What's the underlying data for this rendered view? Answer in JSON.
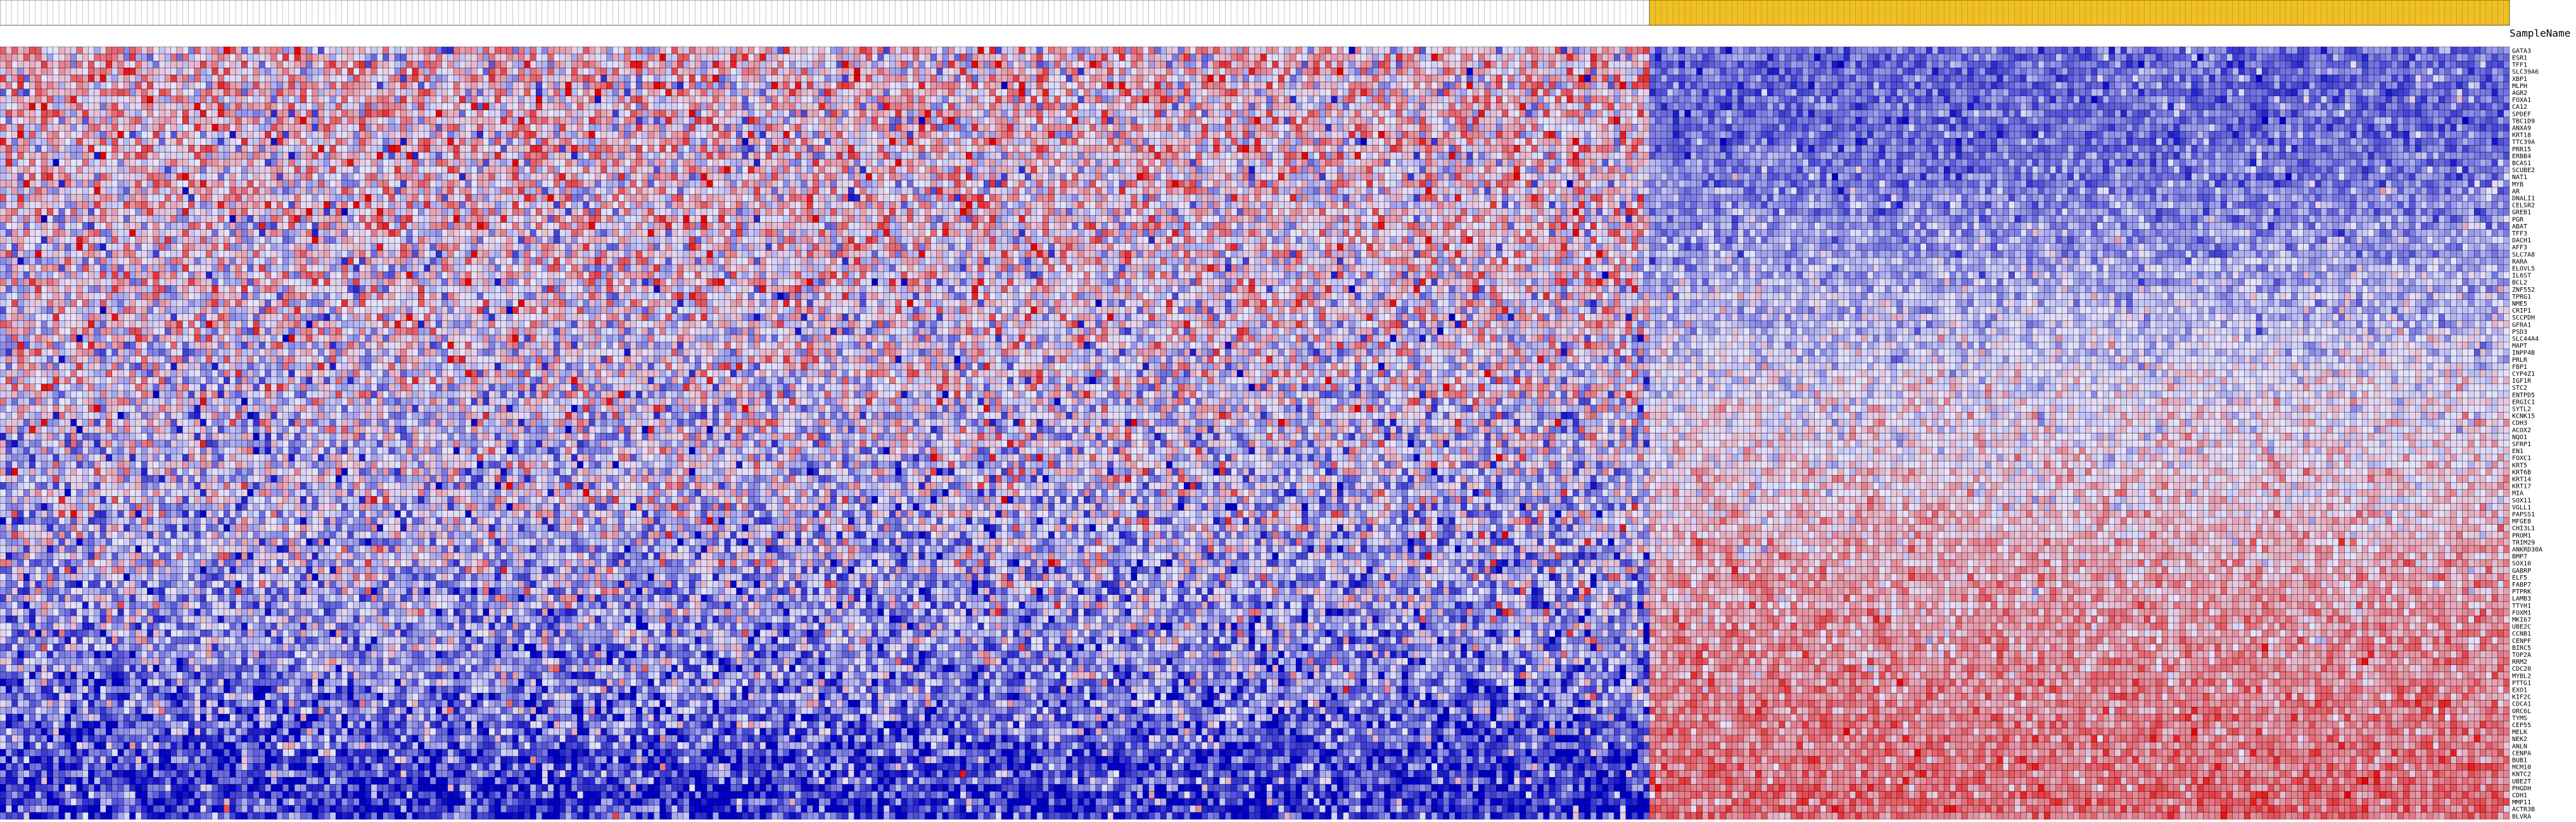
{
  "header": {
    "row_header_label": "SampleName"
  },
  "colors": {
    "low": "#0000c8",
    "mid": "#e6e6ff",
    "high": "#e60000",
    "group_a_band": "#ffffff",
    "group_b_band": "#f0c020",
    "grid": "#000000"
  },
  "icons": [],
  "chart_data": {
    "type": "heatmap",
    "title": "",
    "xlabel": "",
    "ylabel": "",
    "column_groups": [
      {
        "name": "",
        "count": 280
      },
      {
        "name": "",
        "count": 146
      }
    ],
    "value_range": [
      -3,
      3
    ],
    "rows": [
      "GATA3",
      "ESR1",
      "TFF1",
      "SLC39A6",
      "XBP1",
      "MLPH",
      "AGR2",
      "FOXA1",
      "CA12",
      "SPDEF",
      "TBC1D9",
      "ANXA9",
      "KRT18",
      "TTC39A",
      "PRR15",
      "ERBB4",
      "BCAS1",
      "SCUBE2",
      "NAT1",
      "MYB",
      "AR",
      "DNALI1",
      "CELSR2",
      "GREB1",
      "PGR",
      "ABAT",
      "TFF3",
      "DACH1",
      "AFF3",
      "SLC7A8",
      "RARA",
      "ELOVL5",
      "IL6ST",
      "BCL2",
      "ZNF552",
      "TPRG1",
      "NME5",
      "CRIP1",
      "SCCPDH",
      "GFRA1",
      "PSD3",
      "SLC44A4",
      "MAPT",
      "INPP4B",
      "PRLR",
      "FBP1",
      "CYP4Z1",
      "IGF1R",
      "STC2",
      "ENTPD5",
      "ERGIC1",
      "SYTL2",
      "KCNK15",
      "CDH3",
      "ACOX2",
      "NQO1",
      "SFRP1",
      "EN1",
      "FOXC1",
      "KRT5",
      "KRT6B",
      "KRT14",
      "KRT17",
      "MIA",
      "SOX11",
      "VGLL1",
      "PAPSS1",
      "MFGE8",
      "CHI3L1",
      "PROM1",
      "TRIM29",
      "ANKRD30A",
      "BMP7",
      "SOX10",
      "GABRP",
      "ELF5",
      "FABP7",
      "PTPRK",
      "LAMB3",
      "TTYH1",
      "FOXM1",
      "MKI67",
      "UBE2C",
      "CCNB1",
      "CENPF",
      "BIRC5",
      "TOP2A",
      "RRM2",
      "CDC20",
      "MYBL2",
      "PTTG1",
      "EXO1",
      "KIF2C",
      "CDCA1",
      "ORC6L",
      "TYMS",
      "CEP55",
      "MELK",
      "NEK2",
      "ANLN",
      "CENPA",
      "BUB1",
      "MCM10",
      "KNTC2",
      "UBE2T",
      "PHGDH",
      "CDH1",
      "MMP11",
      "ACTR3B",
      "BLVRA"
    ],
    "seed": 20240117,
    "values": [
      [
        0.4,
        -1.5
      ],
      [
        0.4,
        -1.5
      ],
      [
        0.4,
        -1.5
      ],
      [
        0.4,
        -1.5
      ],
      [
        0.4,
        -1.5
      ],
      [
        0.4,
        -1.5
      ],
      [
        0.4,
        -1.5
      ],
      [
        0.4,
        -1.5
      ],
      [
        0.4,
        -1.5
      ],
      [
        0.4,
        -1.5
      ],
      [
        0.4,
        -1.5
      ],
      [
        0.4,
        -1.5
      ],
      [
        0.4,
        -1.5
      ],
      [
        0.4,
        -1.5
      ],
      [
        0.4,
        -1.5
      ],
      [
        0.35,
        -1.3
      ],
      [
        0.35,
        -1.3
      ],
      [
        0.35,
        -1.3
      ],
      [
        0.35,
        -1.3
      ],
      [
        0.35,
        -1.3
      ],
      [
        0.3,
        -1.1
      ],
      [
        0.3,
        -1.1
      ],
      [
        0.3,
        -1.1
      ],
      [
        0.3,
        -1.1
      ],
      [
        0.3,
        -1.1
      ],
      [
        0.25,
        -0.9
      ],
      [
        0.25,
        -0.9
      ],
      [
        0.25,
        -0.9
      ],
      [
        0.25,
        -0.9
      ],
      [
        0.25,
        -0.9
      ],
      [
        0.15,
        -0.7
      ],
      [
        0.15,
        -0.7
      ],
      [
        0.15,
        -0.7
      ],
      [
        0.15,
        -0.7
      ],
      [
        0.15,
        -0.7
      ],
      [
        0.1,
        -0.5
      ],
      [
        0.1,
        -0.5
      ],
      [
        0.1,
        -0.5
      ],
      [
        0.1,
        -0.5
      ],
      [
        0.1,
        -0.5
      ],
      [
        0.0,
        -0.3
      ],
      [
        0.0,
        -0.3
      ],
      [
        0.0,
        -0.3
      ],
      [
        0.0,
        -0.3
      ],
      [
        0.0,
        -0.3
      ],
      [
        -0.1,
        -0.1
      ],
      [
        -0.1,
        -0.1
      ],
      [
        -0.1,
        -0.1
      ],
      [
        -0.1,
        -0.1
      ],
      [
        -0.1,
        -0.1
      ],
      [
        -0.2,
        0.1
      ],
      [
        -0.2,
        0.1
      ],
      [
        -0.2,
        0.1
      ],
      [
        -0.2,
        0.1
      ],
      [
        -0.2,
        0.1
      ],
      [
        -0.3,
        0.25
      ],
      [
        -0.3,
        0.25
      ],
      [
        -0.3,
        0.25
      ],
      [
        -0.3,
        0.25
      ],
      [
        -0.3,
        0.25
      ],
      [
        -0.4,
        0.4
      ],
      [
        -0.4,
        0.4
      ],
      [
        -0.4,
        0.4
      ],
      [
        -0.4,
        0.4
      ],
      [
        -0.4,
        0.4
      ],
      [
        -0.5,
        0.55
      ],
      [
        -0.5,
        0.55
      ],
      [
        -0.5,
        0.55
      ],
      [
        -0.5,
        0.55
      ],
      [
        -0.5,
        0.55
      ],
      [
        -0.6,
        0.7
      ],
      [
        -0.6,
        0.7
      ],
      [
        -0.6,
        0.7
      ],
      [
        -0.6,
        0.7
      ],
      [
        -0.6,
        0.7
      ],
      [
        -0.75,
        0.85
      ],
      [
        -0.75,
        0.85
      ],
      [
        -0.75,
        0.85
      ],
      [
        -0.75,
        0.85
      ],
      [
        -0.75,
        0.85
      ],
      [
        -0.9,
        1.0
      ],
      [
        -0.9,
        1.0
      ],
      [
        -0.9,
        1.0
      ],
      [
        -0.9,
        1.0
      ],
      [
        -0.9,
        1.0
      ],
      [
        -1.05,
        1.1
      ],
      [
        -1.05,
        1.1
      ],
      [
        -1.05,
        1.1
      ],
      [
        -1.05,
        1.1
      ],
      [
        -1.05,
        1.1
      ],
      [
        -1.3,
        1.2
      ],
      [
        -1.3,
        1.2
      ],
      [
        -1.3,
        1.2
      ],
      [
        -1.3,
        1.2
      ],
      [
        -1.3,
        1.2
      ],
      [
        -1.6,
        1.3
      ],
      [
        -1.6,
        1.3
      ],
      [
        -1.6,
        1.3
      ],
      [
        -1.6,
        1.3
      ],
      [
        -1.6,
        1.3
      ],
      [
        -2.0,
        1.4
      ],
      [
        -2.0,
        1.4
      ],
      [
        -2.0,
        1.4
      ],
      [
        -2.0,
        1.4
      ],
      [
        -2.0,
        1.4
      ],
      [
        -2.2,
        1.5
      ],
      [
        -2.2,
        1.5
      ],
      [
        -2.2,
        1.5
      ],
      [
        -2.2,
        1.5
      ],
      [
        -2.2,
        1.5
      ]
    ],
    "value_spread": [
      1.1,
      0.55
    ],
    "legend": "none",
    "grid": true
  }
}
